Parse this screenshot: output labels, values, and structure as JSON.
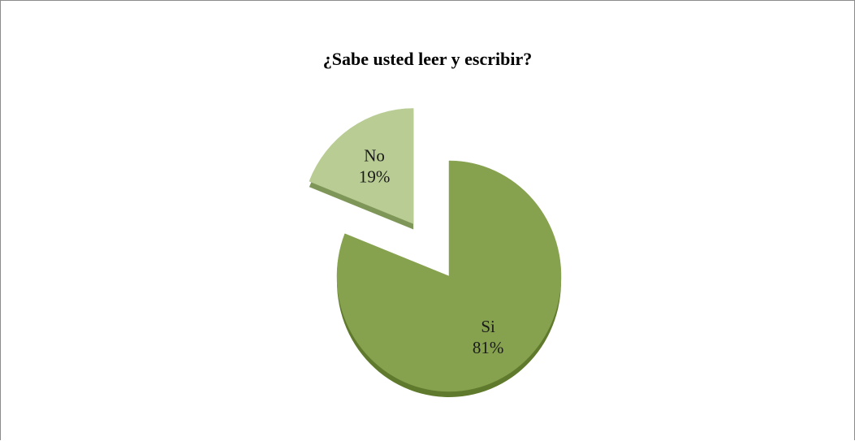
{
  "chart_data": {
    "type": "pie",
    "title": "¿Sabe usted leer y escribir?",
    "categories": [
      "Si",
      "No"
    ],
    "values": [
      81,
      19
    ],
    "labels": [
      "81%",
      "19%"
    ],
    "colors": {
      "Si": {
        "top": "#86a24e",
        "side": "#5f7a2c"
      },
      "No": {
        "top": "#b8cc93",
        "side": "#7f9659"
      }
    },
    "exploded": [
      "No"
    ],
    "legend": "none"
  }
}
